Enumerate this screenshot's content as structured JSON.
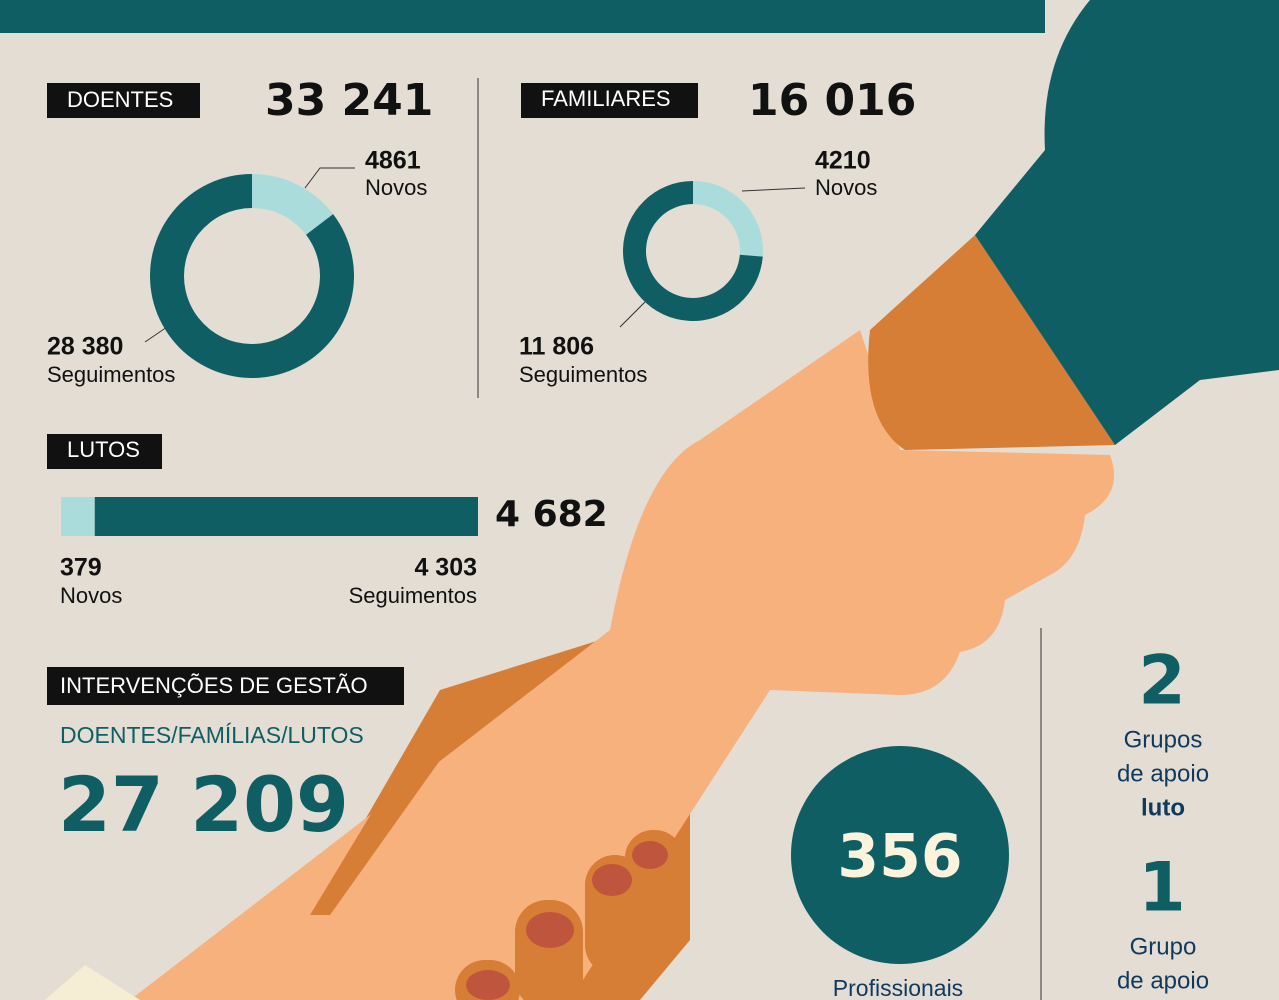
{
  "doentes": {
    "label": "DOENTES",
    "total": "33 241",
    "novos": {
      "value": 4861,
      "label": "4861"
    },
    "novos_caption": "Novos",
    "seguimentos": {
      "value": 28380,
      "label": "28 380"
    },
    "seguimentos_caption": "Seguimentos"
  },
  "familiares": {
    "label": "FAMILIARES",
    "total": "16 016",
    "novos": {
      "value": 4210,
      "label": "4210"
    },
    "novos_caption": "Novos",
    "seguimentos": {
      "value": 11806,
      "label": "11 806"
    },
    "seguimentos_caption": "Seguimentos"
  },
  "lutos": {
    "label": "LUTOS",
    "total": "4 682",
    "novos": {
      "value": 379,
      "label": "379"
    },
    "novos_caption": "Novos",
    "seguimentos": {
      "value": 4303,
      "label": "4 303"
    },
    "seguimentos_caption": "Seguimentos"
  },
  "intervencoes": {
    "label": "INTERVENÇÕES DE GESTÃO",
    "subtitle": "DOENTES/FAMÍLIAS/LUTOS",
    "total": "27 209"
  },
  "profissionais": {
    "number": 356,
    "caption": "Profissionais"
  },
  "grupos": [
    {
      "number": 2,
      "lines": [
        "Grupos",
        "de apoio",
        "luto"
      ]
    },
    {
      "number": 1,
      "lines": [
        "Grupo",
        "de apoio"
      ]
    }
  ]
}
